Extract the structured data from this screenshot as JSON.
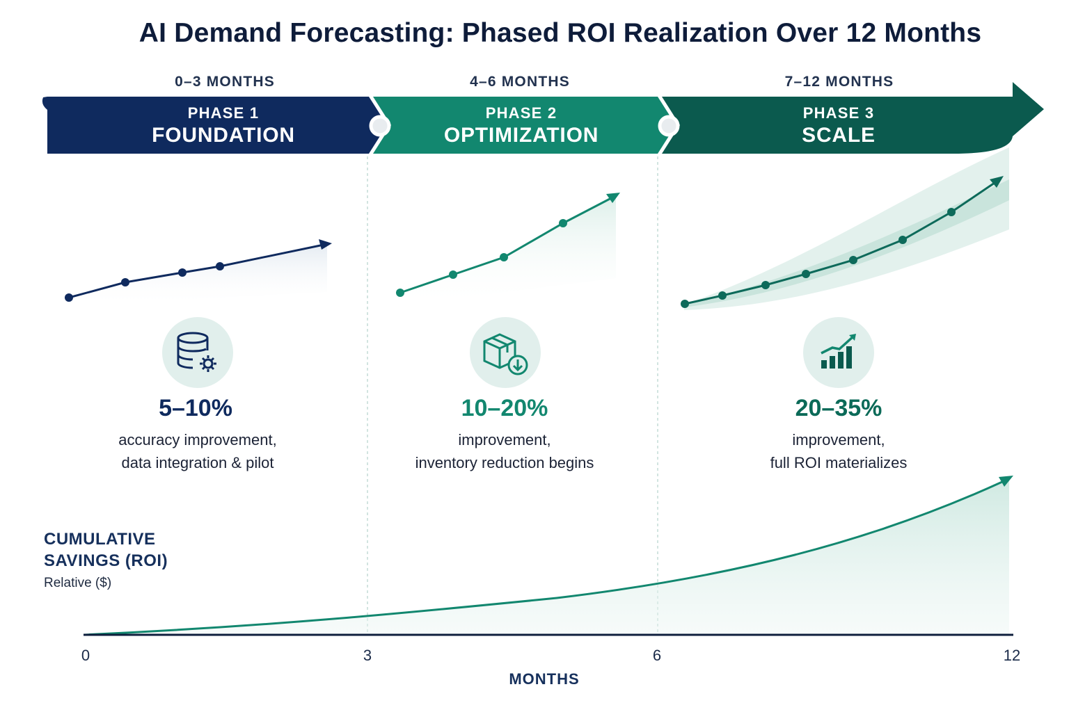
{
  "title": "AI Demand Forecasting: Phased ROI Realization Over 12 Months",
  "colors": {
    "navy": "#0f2a5e",
    "teal": "#12876f",
    "dark_teal": "#0b5a4e",
    "icon_bg": "#e1efec"
  },
  "phases": [
    {
      "range": "0–3 MONTHS",
      "label": "PHASE 1",
      "name": "FOUNDATION",
      "icon": "database-gear-icon",
      "percent": "5–10%",
      "description": [
        "accuracy improvement,",
        "data integration & pilot"
      ],
      "color": "#0f2a5e"
    },
    {
      "range": "4–6 MONTHS",
      "label": "PHASE 2",
      "name": "OPTIMIZATION",
      "icon": "box-download-icon",
      "percent": "10–20%",
      "description": [
        "improvement,",
        "inventory reduction begins"
      ],
      "color": "#12876f"
    },
    {
      "range": "7–12 MONTHS",
      "label": "PHASE 3",
      "name": "SCALE",
      "icon": "growth-bars-icon",
      "percent": "20–35%",
      "description": [
        "improvement,",
        "full ROI materializes"
      ],
      "color": "#0b5a4e"
    }
  ],
  "chart": {
    "ylabel": [
      "CUMULATIVE",
      "SAVINGS (ROI)"
    ],
    "ysub": "Relative ($)",
    "xlabel": "MONTHS",
    "xticks": [
      "0",
      "3",
      "6",
      "12"
    ]
  },
  "chart_data": {
    "type": "area",
    "x": [
      0,
      3,
      6,
      12
    ],
    "y_shape": "exponential growth, relative units",
    "xlabel": "MONTHS",
    "ylabel": "CUMULATIVE SAVINGS (ROI)"
  }
}
